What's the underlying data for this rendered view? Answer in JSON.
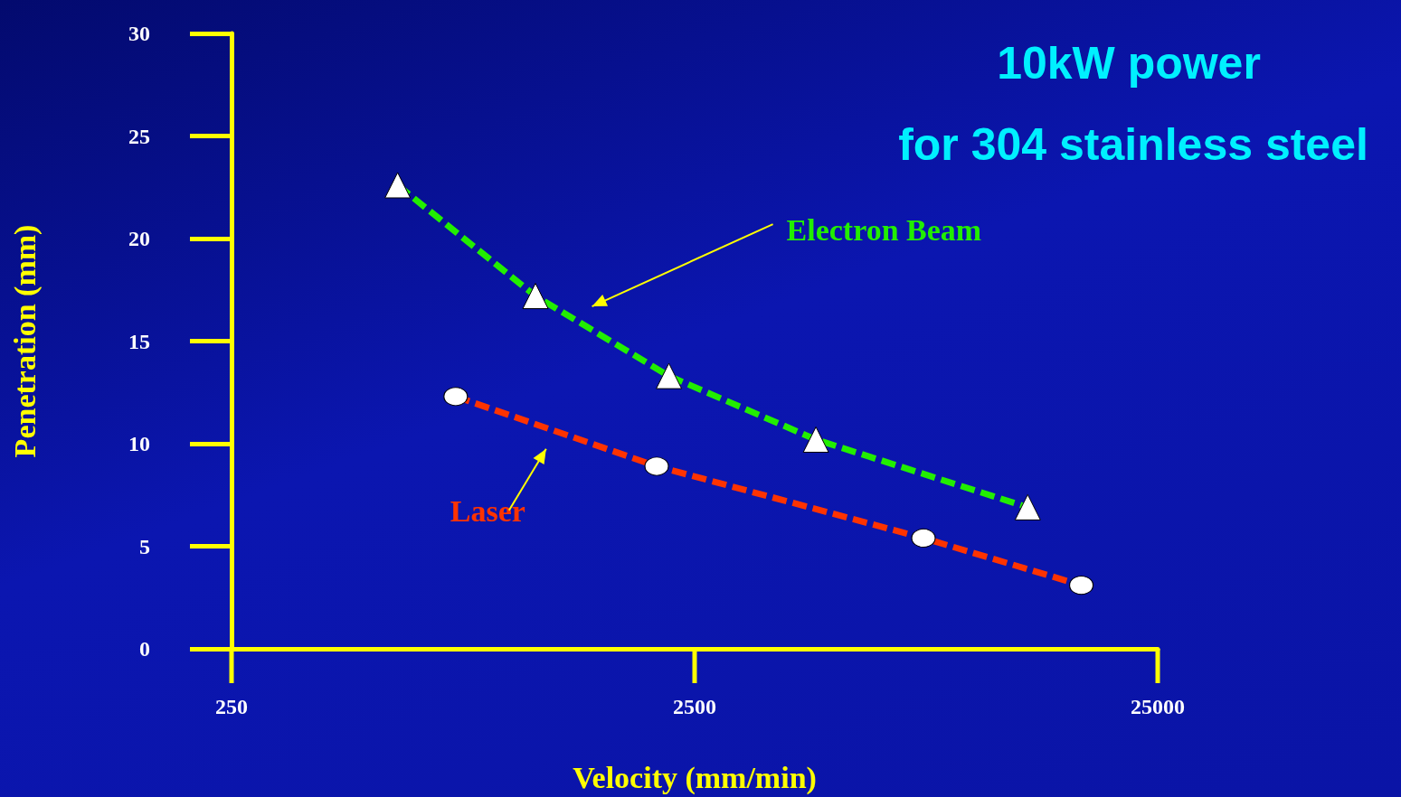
{
  "chart_data": {
    "type": "line",
    "title": "10kW power",
    "subtitle": "for 304 stainless steel",
    "xlabel": "Velocity (mm/min)",
    "ylabel": "Penetration (mm)",
    "log": "x",
    "xlim": [
      250,
      25000
    ],
    "xticks": [
      250,
      2500,
      25000
    ],
    "ylim": [
      0,
      30
    ],
    "yticks": [
      0,
      5,
      10,
      15,
      20,
      25,
      30
    ],
    "grid": false,
    "legend": false,
    "line_style": "dashed",
    "series": [
      {
        "name": "Electron Beam",
        "color": "#22ee00",
        "marker": "triangle",
        "x": [
          571,
          1133,
          2200,
          4570,
          13100
        ],
        "values": [
          22.6,
          17.2,
          13.3,
          10.2,
          6.9
        ]
      },
      {
        "name": "Laser",
        "color": "#ff3300",
        "marker": "circle",
        "x": [
          762,
          2070,
          7800,
          17100
        ],
        "values": [
          12.3,
          8.9,
          5.4,
          3.1
        ]
      }
    ]
  }
}
